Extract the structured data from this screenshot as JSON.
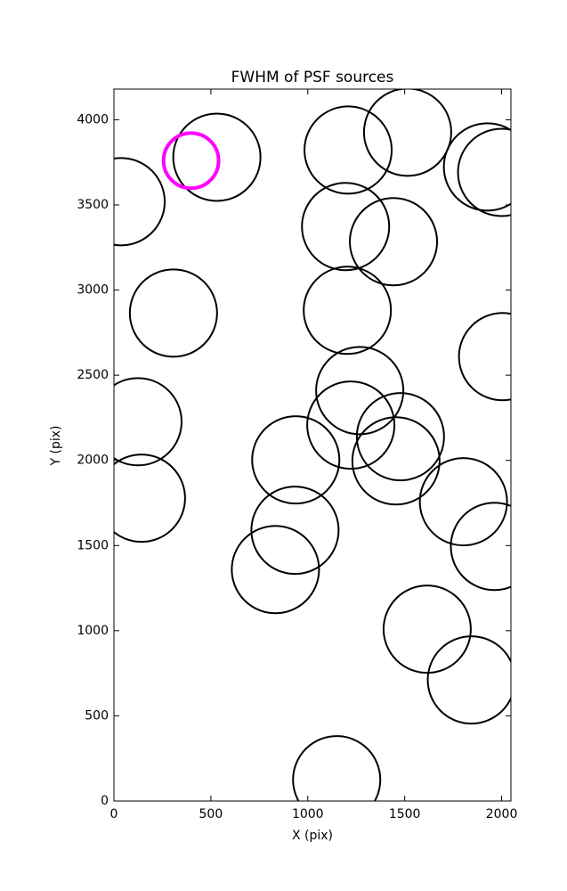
{
  "chart_data": {
    "type": "scatter",
    "title": "FWHM of PSF sources",
    "x_label": "X (pix)",
    "y_label": "Y (pix)",
    "xlim": [
      0,
      2048
    ],
    "ylim": [
      0,
      4180
    ],
    "xticks": [
      0,
      500,
      1000,
      1500,
      2000
    ],
    "yticks": [
      0,
      500,
      1000,
      1500,
      2000,
      2500,
      3000,
      3500,
      4000
    ],
    "grid": false,
    "series": [
      {
        "color": "#000000",
        "marker_radius": 225,
        "x": [
          531,
          37,
          1208,
          1515,
          1927,
          2000,
          1195,
          1442,
          307,
          1204,
          2005,
          1268,
          124,
          1222,
          1478,
          1455,
          938,
          142,
          1803,
          934,
          1963,
          833,
          1616,
          1844,
          1149
        ],
        "y": [
          3780,
          3519,
          3822,
          3927,
          3723,
          3691,
          3373,
          3284,
          2865,
          2881,
          2609,
          2410,
          2227,
          2207,
          2139,
          1997,
          2003,
          1778,
          1757,
          1590,
          1495,
          1359,
          1009,
          711,
          125
        ]
      },
      {
        "color": "#ff00ff",
        "marker_radius": 142,
        "x": [
          398
        ],
        "y": [
          3760
        ]
      }
    ]
  }
}
